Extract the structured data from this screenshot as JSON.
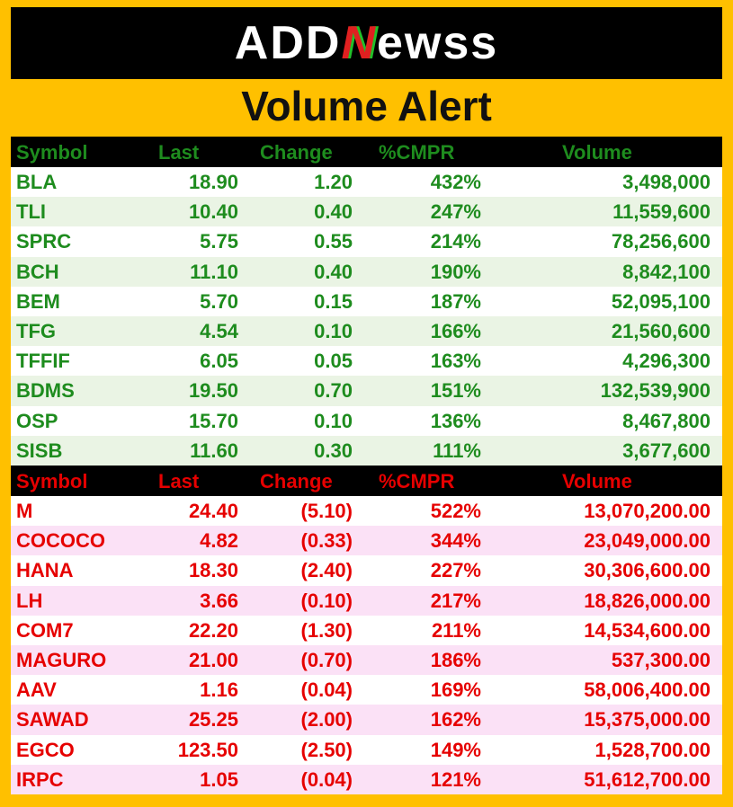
{
  "header": {
    "logo": [
      "ADD",
      "N",
      "ewss"
    ],
    "title": "Volume Alert"
  },
  "gainers": {
    "columns": [
      "Symbol",
      "Last",
      "Change",
      "%CMPR",
      "Volume"
    ],
    "rows": [
      [
        "BLA",
        "18.90",
        "1.20",
        "432%",
        "3,498,000"
      ],
      [
        "TLI",
        "10.40",
        "0.40",
        "247%",
        "11,559,600"
      ],
      [
        "SPRC",
        "5.75",
        "0.55",
        "214%",
        "78,256,600"
      ],
      [
        "BCH",
        "11.10",
        "0.40",
        "190%",
        "8,842,100"
      ],
      [
        "BEM",
        "5.70",
        "0.15",
        "187%",
        "52,095,100"
      ],
      [
        "TFG",
        "4.54",
        "0.10",
        "166%",
        "21,560,600"
      ],
      [
        "TFFIF",
        "6.05",
        "0.05",
        "163%",
        "4,296,300"
      ],
      [
        "BDMS",
        "19.50",
        "0.70",
        "151%",
        "132,539,900"
      ],
      [
        "OSP",
        "15.70",
        "0.10",
        "136%",
        "8,467,800"
      ],
      [
        "SISB",
        "11.60",
        "0.30",
        "111%",
        "3,677,600"
      ]
    ]
  },
  "losers": {
    "columns": [
      "Symbol",
      "Last",
      "Change",
      "%CMPR",
      "Volume"
    ],
    "rows": [
      [
        "M",
        "24.40",
        "(5.10)",
        "522%",
        "13,070,200.00"
      ],
      [
        "COCOCO",
        "4.82",
        "(0.33)",
        "344%",
        "23,049,000.00"
      ],
      [
        "HANA",
        "18.30",
        "(2.40)",
        "227%",
        "30,306,600.00"
      ],
      [
        "LH",
        "3.66",
        "(0.10)",
        "217%",
        "18,826,000.00"
      ],
      [
        "COM7",
        "22.20",
        "(1.30)",
        "211%",
        "14,534,600.00"
      ],
      [
        "MAGURO",
        "21.00",
        "(0.70)",
        "186%",
        "537,300.00"
      ],
      [
        "AAV",
        "1.16",
        "(0.04)",
        "169%",
        "58,006,400.00"
      ],
      [
        "SAWAD",
        "25.25",
        "(2.00)",
        "162%",
        "15,375,000.00"
      ],
      [
        "EGCO",
        "123.50",
        "(2.50)",
        "149%",
        "1,528,700.00"
      ],
      [
        "IRPC",
        "1.05",
        "(0.04)",
        "121%",
        "51,612,700.00"
      ]
    ]
  }
}
